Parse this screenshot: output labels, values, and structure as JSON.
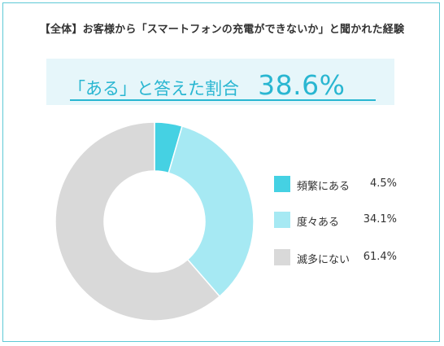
{
  "title": "【全体】お客様から「スマートフォンの充電ができないか」と聞かれた経験",
  "banner": {
    "label": "「ある」と答えた割合",
    "value": "38.6%"
  },
  "colors": {
    "frame": "#5fc9d6",
    "accent": "#29b6d1",
    "banner_bg": "#e6f6fa"
  },
  "chart_data": {
    "type": "pie",
    "donut": true,
    "start": "top",
    "direction": "clockwise",
    "slices": [
      {
        "label": "頻繁にある",
        "value": 4.5,
        "value_label": "4.5%",
        "color": "#45d1e3"
      },
      {
        "label": "度々ある",
        "value": 34.1,
        "value_label": "34.1%",
        "color": "#a6e9f3"
      },
      {
        "label": "滅多にない",
        "value": 61.4,
        "value_label": "61.4%",
        "color": "#d9d9d9"
      }
    ],
    "legend_position": "right"
  }
}
